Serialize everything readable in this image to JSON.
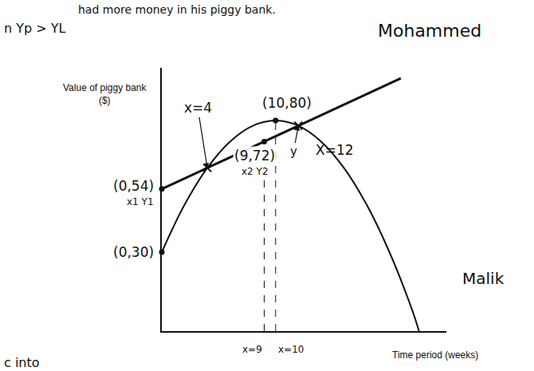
{
  "chart_data": {
    "type": "line",
    "x_label": "Time period (weeks)",
    "y_label": "Value of piggy bank ($)",
    "xlim": [
      0,
      25
    ],
    "ylim": [
      0,
      100
    ],
    "xticks": [],
    "yticks": [],
    "tick_labels": false,
    "grid": false,
    "series": [
      {
        "name": "Mohammed",
        "color": "#111111",
        "line_style": "solid",
        "x": [
          0,
          4,
          9,
          12,
          21
        ],
        "values": [
          54,
          62,
          72,
          78,
          96
        ]
      },
      {
        "name": "Malik",
        "color": "#111111",
        "line_style": "solid",
        "x": [
          0,
          2,
          4,
          6,
          8,
          10,
          12,
          14,
          16,
          18,
          20,
          22,
          22.6
        ],
        "values": [
          30,
          48,
          62,
          72,
          78,
          80,
          78,
          72,
          62,
          48,
          30,
          8,
          0
        ]
      }
    ],
    "points": [
      {
        "x": 10,
        "y": 80,
        "label": "(10,80)"
      },
      {
        "x": 9,
        "y": 72,
        "label": "(9,72)",
        "sublabel": "x2 Y2"
      },
      {
        "x": 0,
        "y": 54,
        "label": "(0,54)",
        "sublabel": "x1 Y1"
      },
      {
        "x": 0,
        "y": 30,
        "label": "(0,30)"
      }
    ],
    "intersections": [
      {
        "x": 4,
        "y": 62,
        "label": "x=4"
      },
      {
        "x": 12,
        "y": 78,
        "label": "X=12",
        "sublabel": "y"
      }
    ],
    "guides": [
      {
        "x": 9,
        "label": "x=9"
      },
      {
        "x": 10,
        "label": "x=10"
      }
    ],
    "notes": [
      "had more money in his piggy bank.",
      "n Yp > YL",
      "c into"
    ]
  }
}
